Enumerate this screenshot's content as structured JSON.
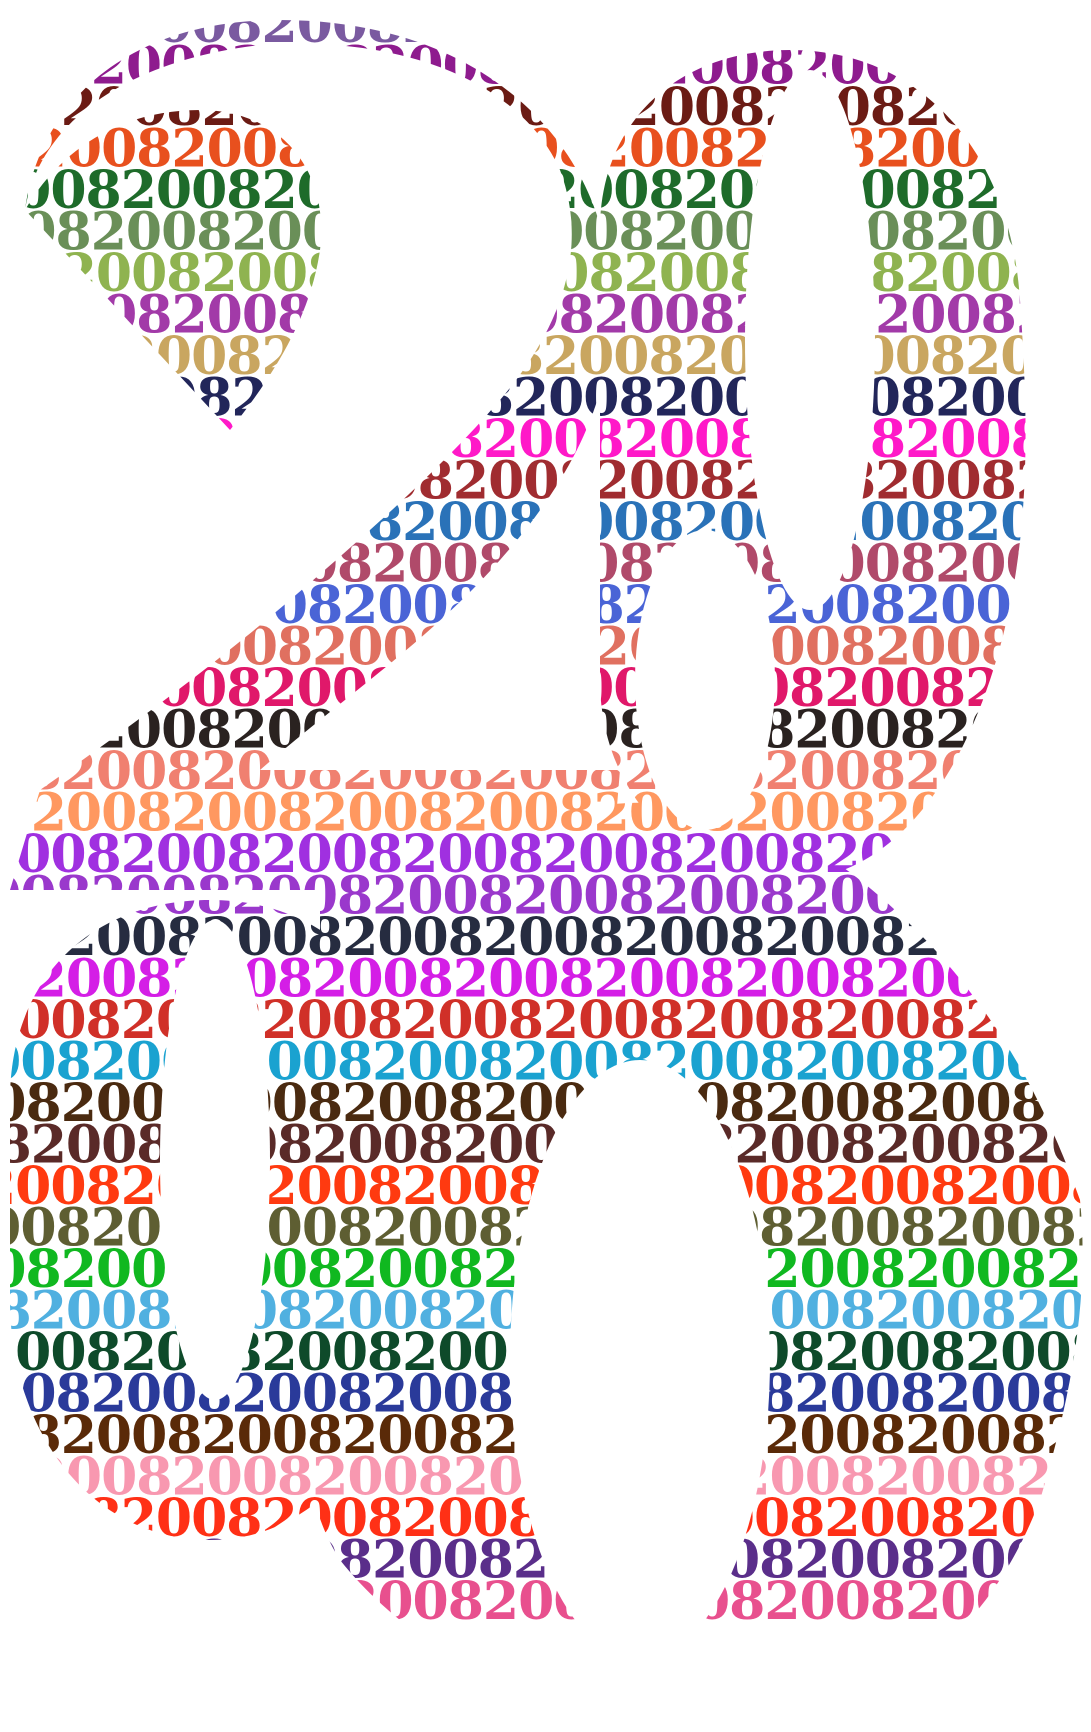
{
  "artwork": {
    "repeat_text": "2008",
    "shape_digits": [
      "2",
      "0",
      "0",
      "8"
    ],
    "background_color": "#ffffff",
    "row_colors": [
      "#7a5aa0",
      "#8e1b8e",
      "#6b1b14",
      "#e8501e",
      "#1e6b2a",
      "#6a8f58",
      "#8fb350",
      "#a23aa8",
      "#c9a660",
      "#22265a",
      "#ff19c8",
      "#a02c30",
      "#2a72b8",
      "#b04a6a",
      "#4a64d6",
      "#e07060",
      "#e0186a",
      "#2a2220",
      "#f08070",
      "#ff9860",
      "#a030e0",
      "#9a38cc",
      "#262c40",
      "#d41ee6",
      "#d03028",
      "#1aa2d0",
      "#4a2a10",
      "#5a2a28",
      "#ff3a10",
      "#5e5e32",
      "#10b820",
      "#50b0e0",
      "#0e4a2a",
      "#2a3a9a",
      "#5a2a08",
      "#f898b0",
      "#ff3016",
      "#5a2e8a",
      "#e8508e"
    ]
  }
}
